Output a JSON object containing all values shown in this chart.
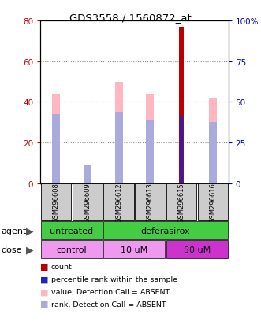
{
  "title": "GDS3558 / 1560872_at",
  "samples": [
    "GSM296608",
    "GSM296609",
    "GSM296612",
    "GSM296613",
    "GSM296615",
    "GSM296616"
  ],
  "value_absent": [
    44,
    6,
    50,
    44,
    0,
    42
  ],
  "rank_absent": [
    34,
    9,
    35,
    31,
    0,
    30
  ],
  "count": [
    0,
    0,
    0,
    0,
    77,
    0
  ],
  "percentile_rank": [
    0,
    0,
    0,
    0,
    41,
    0
  ],
  "ylim_left": [
    0,
    80
  ],
  "ylim_right": [
    0,
    100
  ],
  "yticks_left": [
    0,
    20,
    40,
    60,
    80
  ],
  "yticks_right": [
    0,
    25,
    50,
    75,
    100
  ],
  "ytick_labels_right": [
    "0",
    "25",
    "50",
    "75",
    "100%"
  ],
  "color_pink": "#FFB6C1",
  "color_lightblue": "#AAAADD",
  "color_red": "#BB0000",
  "color_blue": "#2222BB",
  "color_green_light": "#88DD88",
  "color_green_dark": "#44CC44",
  "color_magenta_light": "#EE99EE",
  "color_magenta_dark": "#CC33CC",
  "color_gray": "#CCCCCC",
  "legend_items": [
    {
      "color": "#BB0000",
      "label": "count"
    },
    {
      "color": "#2222BB",
      "label": "percentile rank within the sample"
    },
    {
      "color": "#FFB6C1",
      "label": "value, Detection Call = ABSENT"
    },
    {
      "color": "#AAAADD",
      "label": "rank, Detection Call = ABSENT"
    }
  ],
  "bar_width": 0.25
}
